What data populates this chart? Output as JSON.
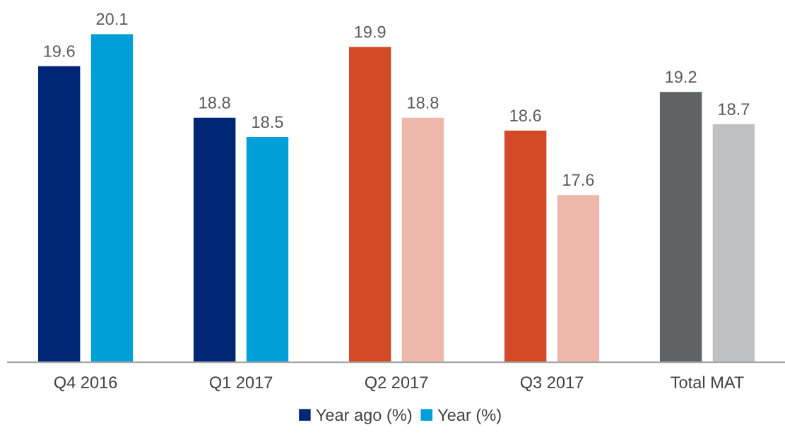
{
  "chart_data": {
    "type": "bar",
    "categories": [
      "Q4 2016",
      "Q1 2017",
      "Q2 2017",
      "Q3 2017",
      "Total MAT"
    ],
    "series": [
      {
        "name": "Year ago (%)",
        "color": "#002776",
        "colors": [
          "#002776",
          "#002776",
          "#d24a28",
          "#d24a28",
          "#616265"
        ],
        "values": [
          19.6,
          18.8,
          19.9,
          18.6,
          19.2
        ]
      },
      {
        "name": "Year (%)",
        "color": "#009fda",
        "colors": [
          "#009fda",
          "#009fda",
          "#edb8aa",
          "#edb8aa",
          "#c0c1c3"
        ],
        "values": [
          20.1,
          18.5,
          18.8,
          17.6,
          18.7
        ]
      }
    ],
    "ylim": [
      15,
      20.1
    ],
    "data_labels": true,
    "legend": "bottom",
    "grid": false,
    "tick_labels": "x"
  }
}
